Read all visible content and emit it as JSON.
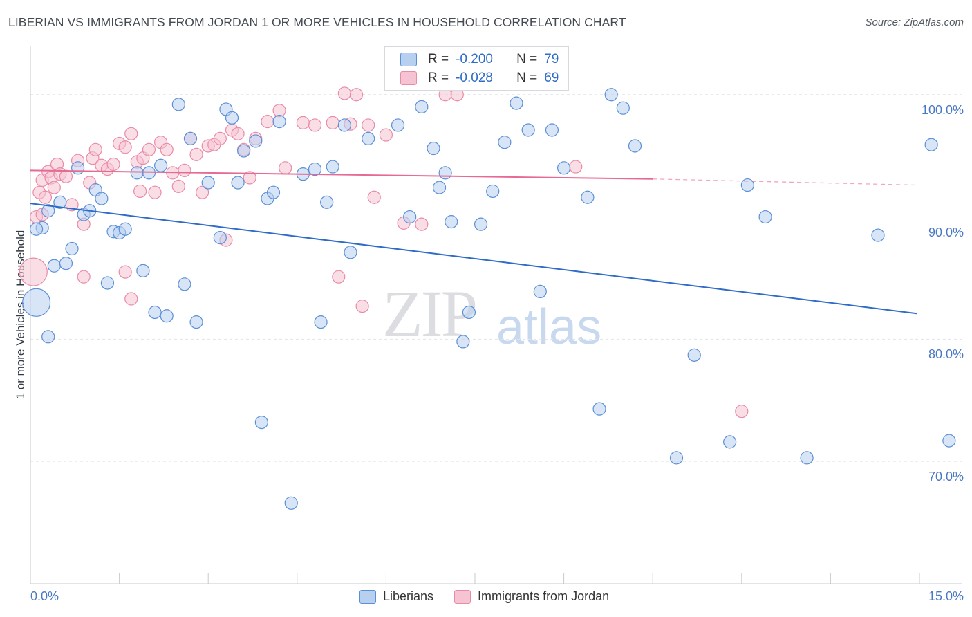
{
  "title": "LIBERIAN VS IMMIGRANTS FROM JORDAN 1 OR MORE VEHICLES IN HOUSEHOLD CORRELATION CHART",
  "source": "Source: ZipAtlas.com",
  "watermark": {
    "zip": "ZIP",
    "atlas": "atlas"
  },
  "colors": {
    "blue": "#5b8fd6",
    "blue_fill": "#b8d0f0",
    "blue_line": "#2f6cc7",
    "pink": "#e98aa8",
    "pink_fill": "#f6c3d2",
    "pink_line": "#e66a93",
    "grid": "#e2e4e8"
  },
  "legend": {
    "r_label": "R =",
    "n_label": "N =",
    "series": [
      {
        "name": "Liberians",
        "r": "-0.200",
        "n": "79"
      },
      {
        "name": "Immigrants from Jordan",
        "r": "-0.028",
        "n": "69"
      }
    ]
  },
  "chart_data": {
    "type": "scatter",
    "ylabel": "1 or more Vehicles in Household",
    "xlim": [
      0,
      15
    ],
    "ylim": [
      60.0,
      104.0
    ],
    "x_tick_labels": [
      "0.0%",
      "15.0%"
    ],
    "y_ticks": [
      {
        "value": 70,
        "label": "70.0%"
      },
      {
        "value": 80,
        "label": "80.0%"
      },
      {
        "value": 90,
        "label": "90.0%"
      },
      {
        "value": 100,
        "label": "100.0%"
      }
    ],
    "grid": true,
    "series": [
      {
        "name": "Liberians",
        "trend": {
          "x": [
            0.0,
            15.0
          ],
          "y": [
            91.1,
            82.1
          ]
        },
        "points": [
          [
            0.1,
            83.0
          ],
          [
            0.2,
            89.1
          ],
          [
            0.3,
            90.5
          ],
          [
            0.4,
            86.0
          ],
          [
            0.5,
            91.2
          ],
          [
            0.6,
            86.2
          ],
          [
            0.7,
            87.4
          ],
          [
            0.8,
            94.0
          ],
          [
            0.9,
            90.2
          ],
          [
            1.0,
            90.5
          ],
          [
            1.1,
            92.2
          ],
          [
            1.2,
            91.5
          ],
          [
            1.3,
            84.6
          ],
          [
            1.4,
            88.8
          ],
          [
            1.5,
            88.7
          ],
          [
            1.6,
            89.0
          ],
          [
            1.8,
            93.6
          ],
          [
            1.9,
            85.6
          ],
          [
            2.0,
            93.6
          ],
          [
            2.1,
            82.2
          ],
          [
            2.2,
            94.2
          ],
          [
            2.3,
            81.9
          ],
          [
            2.5,
            99.2
          ],
          [
            2.6,
            84.5
          ],
          [
            2.7,
            96.4
          ],
          [
            2.8,
            81.4
          ],
          [
            3.0,
            92.8
          ],
          [
            3.2,
            88.3
          ],
          [
            3.3,
            98.8
          ],
          [
            3.4,
            98.1
          ],
          [
            3.5,
            92.8
          ],
          [
            3.6,
            95.4
          ],
          [
            3.8,
            96.2
          ],
          [
            3.9,
            73.2
          ],
          [
            4.0,
            91.5
          ],
          [
            4.1,
            92.0
          ],
          [
            4.2,
            97.8
          ],
          [
            4.4,
            66.6
          ],
          [
            4.6,
            93.5
          ],
          [
            4.8,
            93.9
          ],
          [
            4.9,
            81.4
          ],
          [
            5.0,
            91.2
          ],
          [
            5.1,
            94.1
          ],
          [
            5.3,
            97.5
          ],
          [
            5.4,
            87.1
          ],
          [
            5.7,
            96.4
          ],
          [
            6.2,
            97.5
          ],
          [
            6.4,
            90.0
          ],
          [
            6.6,
            99.0
          ],
          [
            6.8,
            95.6
          ],
          [
            6.9,
            92.4
          ],
          [
            7.0,
            93.6
          ],
          [
            7.1,
            89.6
          ],
          [
            7.3,
            79.8
          ],
          [
            7.4,
            82.2
          ],
          [
            7.6,
            89.4
          ],
          [
            7.8,
            92.1
          ],
          [
            8.0,
            96.1
          ],
          [
            8.2,
            99.3
          ],
          [
            8.4,
            97.1
          ],
          [
            8.6,
            83.9
          ],
          [
            8.8,
            97.1
          ],
          [
            9.0,
            94.0
          ],
          [
            9.4,
            91.6
          ],
          [
            9.6,
            74.3
          ],
          [
            9.8,
            100.0
          ],
          [
            10.0,
            98.9
          ],
          [
            10.2,
            95.8
          ],
          [
            10.9,
            70.3
          ],
          [
            11.2,
            78.7
          ],
          [
            11.8,
            71.6
          ],
          [
            12.1,
            92.6
          ],
          [
            12.4,
            90.0
          ],
          [
            13.1,
            70.3
          ],
          [
            14.3,
            88.5
          ],
          [
            15.2,
            95.9
          ],
          [
            15.5,
            71.7
          ],
          [
            0.3,
            80.2
          ],
          [
            0.1,
            89.0
          ]
        ]
      },
      {
        "name": "Immigrants from Jordan",
        "trend": {
          "x": [
            0.0,
            10.5
          ],
          "y": [
            93.8,
            93.1
          ]
        },
        "trend_dashed": {
          "x": [
            10.5,
            15.0
          ],
          "y": [
            93.1,
            92.6
          ]
        },
        "points": [
          [
            0.05,
            85.5
          ],
          [
            0.1,
            90.0
          ],
          [
            0.15,
            92.0
          ],
          [
            0.2,
            93.0
          ],
          [
            0.25,
            91.6
          ],
          [
            0.3,
            93.7
          ],
          [
            0.35,
            93.2
          ],
          [
            0.4,
            92.4
          ],
          [
            0.45,
            94.3
          ],
          [
            0.5,
            93.5
          ],
          [
            0.6,
            93.3
          ],
          [
            0.7,
            91.0
          ],
          [
            0.8,
            94.6
          ],
          [
            0.9,
            89.4
          ],
          [
            1.0,
            92.8
          ],
          [
            1.05,
            94.8
          ],
          [
            1.1,
            95.5
          ],
          [
            1.2,
            94.2
          ],
          [
            1.3,
            93.9
          ],
          [
            1.4,
            94.3
          ],
          [
            1.5,
            96.0
          ],
          [
            1.6,
            95.7
          ],
          [
            1.7,
            96.8
          ],
          [
            1.8,
            94.5
          ],
          [
            1.85,
            92.1
          ],
          [
            1.9,
            94.8
          ],
          [
            2.0,
            95.5
          ],
          [
            2.1,
            92.0
          ],
          [
            2.2,
            96.1
          ],
          [
            2.3,
            95.5
          ],
          [
            2.4,
            93.6
          ],
          [
            2.5,
            92.5
          ],
          [
            2.6,
            93.8
          ],
          [
            2.7,
            96.4
          ],
          [
            2.8,
            95.1
          ],
          [
            2.9,
            92.0
          ],
          [
            3.0,
            95.8
          ],
          [
            3.1,
            95.9
          ],
          [
            3.2,
            96.4
          ],
          [
            3.3,
            88.1
          ],
          [
            3.4,
            97.1
          ],
          [
            3.5,
            96.8
          ],
          [
            3.6,
            95.5
          ],
          [
            3.7,
            93.2
          ],
          [
            3.8,
            96.4
          ],
          [
            4.0,
            97.8
          ],
          [
            4.2,
            98.7
          ],
          [
            4.3,
            94.0
          ],
          [
            4.6,
            97.7
          ],
          [
            4.8,
            97.5
          ],
          [
            5.1,
            97.7
          ],
          [
            5.2,
            85.1
          ],
          [
            5.3,
            100.1
          ],
          [
            5.4,
            97.6
          ],
          [
            5.5,
            100.0
          ],
          [
            5.6,
            82.7
          ],
          [
            5.7,
            97.5
          ],
          [
            5.8,
            91.6
          ],
          [
            6.0,
            96.7
          ],
          [
            6.3,
            89.5
          ],
          [
            6.6,
            89.4
          ],
          [
            7.0,
            100.0
          ],
          [
            7.2,
            100.0
          ],
          [
            0.2,
            90.2
          ],
          [
            0.9,
            85.1
          ],
          [
            1.6,
            85.5
          ],
          [
            1.7,
            83.3
          ],
          [
            9.2,
            94.1
          ],
          [
            12.0,
            74.1
          ]
        ]
      }
    ]
  },
  "point_sizes": {
    "big": [
      83.0,
      85.5
    ]
  }
}
